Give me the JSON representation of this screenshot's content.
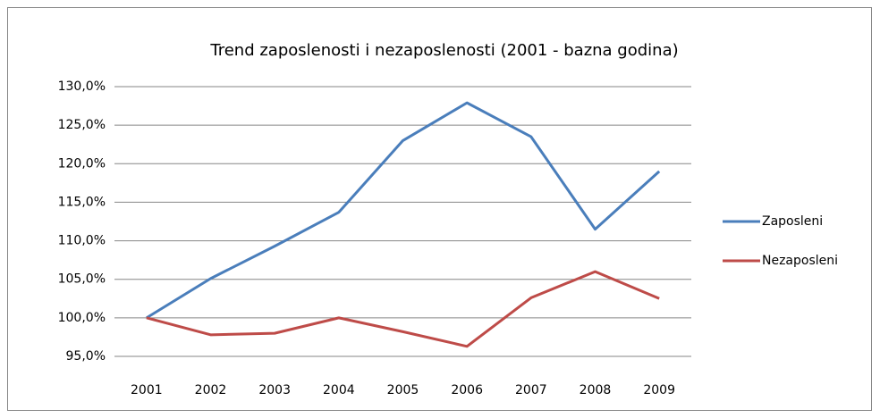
{
  "chart_data": {
    "type": "line",
    "title": "Trend zaposlenosti i nezaposlenosti (2001 - bazna godina)",
    "categories": [
      "2001",
      "2002",
      "2003",
      "2004",
      "2005",
      "2006",
      "2007",
      "2008",
      "2009"
    ],
    "series": [
      {
        "name": "Zaposleni",
        "color": "#4a7ebb",
        "values": [
          100,
          105.1,
          109.3,
          113.7,
          123.0,
          127.9,
          123.5,
          111.5,
          119.0
        ]
      },
      {
        "name": "Nezaposleni",
        "color": "#be4b48",
        "values": [
          100,
          97.8,
          98.0,
          100.0,
          98.2,
          96.3,
          102.6,
          106.0,
          102.5
        ]
      }
    ],
    "ylim": [
      95,
      130
    ],
    "yticks": [
      {
        "value": 95,
        "label": "95,0%"
      },
      {
        "value": 100,
        "label": "100,0%"
      },
      {
        "value": 105,
        "label": "105,0%"
      },
      {
        "value": 110,
        "label": "110,0%"
      },
      {
        "value": 115,
        "label": "115,0%"
      },
      {
        "value": 120,
        "label": "120,0%"
      },
      {
        "value": 125,
        "label": "125,0%"
      },
      {
        "value": 130,
        "label": "130,0%"
      }
    ],
    "grid": true,
    "legend": "right"
  }
}
